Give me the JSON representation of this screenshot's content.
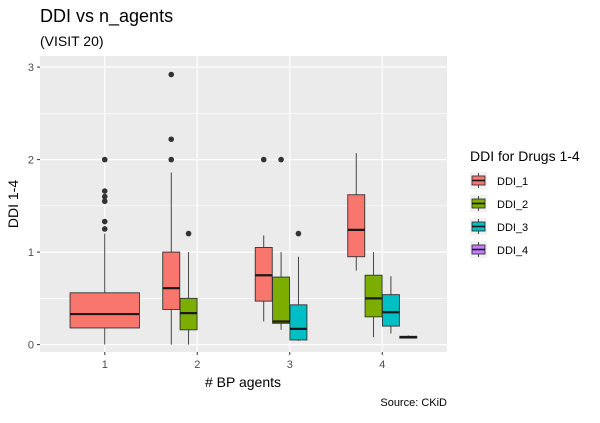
{
  "chart_data": {
    "type": "boxplot",
    "title": "DDI vs n_agents",
    "subtitle": "(VISIT 20)",
    "xlabel": "# BP agents",
    "ylabel": "DDI 1-4",
    "caption": "Source: CKiD",
    "categories": [
      "1",
      "2",
      "3",
      "4"
    ],
    "ylim": [
      -0.08,
      3.12
    ],
    "yticks": [
      0,
      1,
      2,
      3
    ],
    "grid": true,
    "legend": {
      "title": "DDI for Drugs 1-4",
      "placement": "right"
    },
    "series": [
      {
        "name": "DDI_1",
        "color": "#F8766D"
      },
      {
        "name": "DDI_2",
        "color": "#7CAE00"
      },
      {
        "name": "DDI_3",
        "color": "#00BFC4"
      },
      {
        "name": "DDI_4",
        "color": "#C77CFF"
      }
    ],
    "boxes": [
      {
        "category": "1",
        "series": "DDI_1",
        "lower_whisker": 0.0,
        "q1": 0.18,
        "median": 0.33,
        "q3": 0.56,
        "upper_whisker": 1.2,
        "outliers": [
          2.0,
          1.66,
          1.6,
          1.55,
          1.33,
          1.25
        ]
      },
      {
        "category": "2",
        "series": "DDI_1",
        "lower_whisker": 0.0,
        "q1": 0.38,
        "median": 0.61,
        "q3": 1.0,
        "upper_whisker": 1.86,
        "outliers": [
          2.0,
          2.22,
          2.92
        ]
      },
      {
        "category": "2",
        "series": "DDI_2",
        "lower_whisker": 0.0,
        "q1": 0.16,
        "median": 0.34,
        "q3": 0.5,
        "upper_whisker": 1.0,
        "outliers": [
          1.2
        ]
      },
      {
        "category": "3",
        "series": "DDI_1",
        "lower_whisker": 0.25,
        "q1": 0.47,
        "median": 0.75,
        "q3": 1.05,
        "upper_whisker": 1.18,
        "outliers": [
          2.0
        ]
      },
      {
        "category": "3",
        "series": "DDI_2",
        "lower_whisker": 0.16,
        "q1": 0.23,
        "median": 0.25,
        "q3": 0.73,
        "upper_whisker": 1.0,
        "outliers": [
          2.0
        ]
      },
      {
        "category": "3",
        "series": "DDI_3",
        "lower_whisker": 0.04,
        "q1": 0.05,
        "median": 0.17,
        "q3": 0.43,
        "upper_whisker": 0.95,
        "outliers": [
          1.2
        ]
      },
      {
        "category": "4",
        "series": "DDI_1",
        "lower_whisker": 0.8,
        "q1": 0.95,
        "median": 1.24,
        "q3": 1.62,
        "upper_whisker": 2.07,
        "outliers": []
      },
      {
        "category": "4",
        "series": "DDI_2",
        "lower_whisker": 0.08,
        "q1": 0.3,
        "median": 0.5,
        "q3": 0.75,
        "upper_whisker": 1.0,
        "outliers": []
      },
      {
        "category": "4",
        "series": "DDI_3",
        "lower_whisker": 0.12,
        "q1": 0.2,
        "median": 0.35,
        "q3": 0.54,
        "upper_whisker": 0.74,
        "outliers": []
      },
      {
        "category": "4",
        "series": "DDI_4",
        "lower_whisker": 0.07,
        "q1": 0.07,
        "median": 0.08,
        "q3": 0.09,
        "upper_whisker": 0.1,
        "outliers": []
      }
    ]
  }
}
